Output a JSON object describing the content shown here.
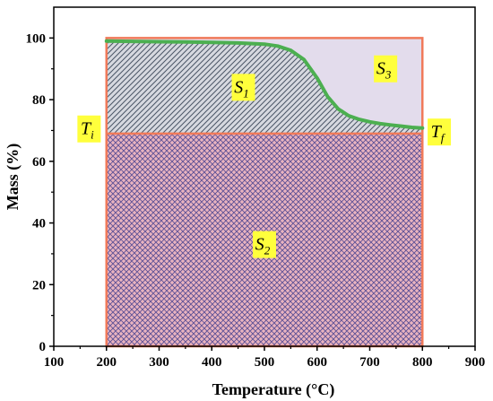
{
  "chart_data": {
    "type": "line",
    "title": "",
    "xlabel": "Temperature (°C)",
    "ylabel": "Mass (%)",
    "xlim": [
      100,
      900
    ],
    "ylim": [
      0,
      110
    ],
    "x_ticks": [
      100,
      200,
      300,
      400,
      500,
      600,
      700,
      800,
      900
    ],
    "y_ticks": [
      0,
      20,
      40,
      60,
      80,
      100
    ],
    "series": [
      {
        "x": [
          200,
          250,
          300,
          350,
          400,
          450,
          500,
          525,
          550,
          575,
          600,
          620,
          640,
          660,
          680,
          700,
          720,
          740,
          760,
          780,
          800
        ],
        "y": [
          99.0,
          98.9,
          98.8,
          98.7,
          98.6,
          98.4,
          98.0,
          97.4,
          96.0,
          93.0,
          87.0,
          81.0,
          77.0,
          74.8,
          73.6,
          72.8,
          72.2,
          71.8,
          71.4,
          71.0,
          70.8
        ],
        "color": "#4caf50"
      }
    ],
    "regions": [
      {
        "label": "S",
        "sub": "1",
        "x_range": [
          200,
          800
        ],
        "y_range": [
          69,
          100
        ],
        "pattern": "diagonal hatch",
        "color": "#6b7a8f"
      },
      {
        "label": "S",
        "sub": "2",
        "x_range": [
          200,
          800
        ],
        "y_range": [
          0,
          69
        ],
        "pattern": "crosshatch",
        "color": "#a05090"
      },
      {
        "label": "S",
        "sub": "3",
        "x_range": [
          200,
          800
        ],
        "y_range": [
          69,
          100
        ],
        "pattern": "solid",
        "color": "#e3dcec"
      }
    ],
    "reference_level": 69,
    "annotations": [
      {
        "label": "T",
        "sub": "i",
        "x": 200,
        "y": 69
      },
      {
        "label": "T",
        "sub": "f",
        "x": 800,
        "y": 69
      }
    ],
    "colors": {
      "frame": "#f07a5a",
      "label_background": "#ffff3c",
      "curve": "#4caf50"
    }
  }
}
